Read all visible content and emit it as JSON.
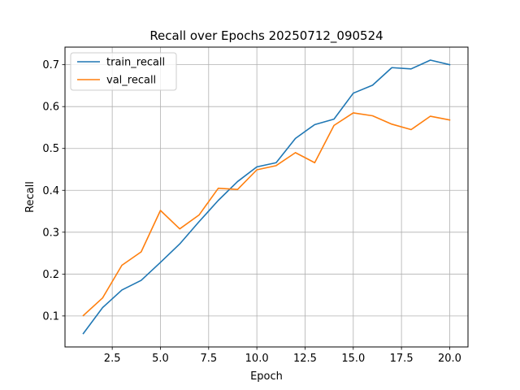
{
  "chart_data": {
    "type": "line",
    "title": "Recall over Epochs 20250712_090524",
    "xlabel": "Epoch",
    "ylabel": "Recall",
    "xlim": [
      0.05,
      20.95
    ],
    "ylim": [
      0.026,
      0.742
    ],
    "xticks": [
      2.5,
      5.0,
      7.5,
      10.0,
      12.5,
      15.0,
      17.5,
      20.0
    ],
    "xtick_labels": [
      "2.5",
      "5.0",
      "7.5",
      "10.0",
      "12.5",
      "15.0",
      "17.5",
      "20.0"
    ],
    "yticks": [
      0.1,
      0.2,
      0.3,
      0.4,
      0.5,
      0.6,
      0.7
    ],
    "ytick_labels": [
      "0.1",
      "0.2",
      "0.3",
      "0.4",
      "0.5",
      "0.6",
      "0.7"
    ],
    "grid": true,
    "legend_position": "top-left",
    "x": [
      1,
      2,
      3,
      4,
      5,
      6,
      7,
      8,
      9,
      10,
      11,
      12,
      13,
      14,
      15,
      16,
      17,
      18,
      19,
      20
    ],
    "series": [
      {
        "name": "train_recall",
        "color": "#1f77b4",
        "values": [
          0.058,
          0.12,
          0.162,
          0.185,
          0.228,
          0.272,
          0.325,
          0.376,
          0.421,
          0.456,
          0.466,
          0.524,
          0.557,
          0.57,
          0.632,
          0.651,
          0.693,
          0.69,
          0.711,
          0.7
        ]
      },
      {
        "name": "val_recall",
        "color": "#ff7f0e",
        "values": [
          0.101,
          0.143,
          0.221,
          0.253,
          0.352,
          0.308,
          0.341,
          0.405,
          0.402,
          0.449,
          0.459,
          0.49,
          0.466,
          0.555,
          0.585,
          0.578,
          0.558,
          0.545,
          0.577,
          0.568
        ]
      }
    ]
  }
}
